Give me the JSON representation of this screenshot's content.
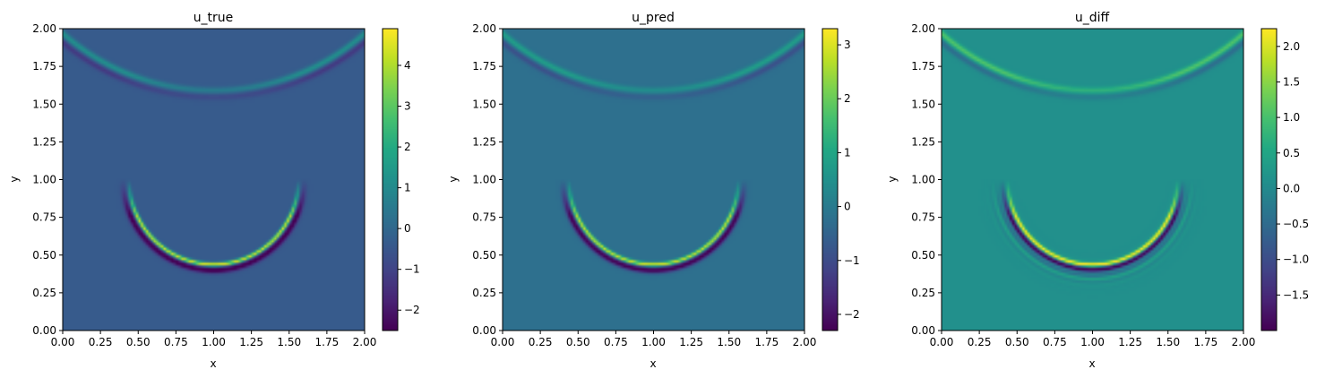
{
  "chart_data": [
    {
      "type": "heatmap",
      "title": "u_true",
      "xlabel": "x",
      "ylabel": "y",
      "xlim": [
        0,
        2
      ],
      "ylim": [
        0,
        2
      ],
      "xticks": [
        "0.00",
        "0.25",
        "0.50",
        "0.75",
        "1.00",
        "1.25",
        "1.50",
        "1.75",
        "2.00"
      ],
      "yticks": [
        "0.00",
        "0.25",
        "0.50",
        "0.75",
        "1.00",
        "1.25",
        "1.50",
        "1.75",
        "2.00"
      ],
      "colormap": "viridis",
      "colorbar": {
        "min": -2.5,
        "max": 4.9,
        "ticks": [
          -2,
          -1,
          0,
          1,
          2,
          3,
          4
        ],
        "labels": [
          "−2",
          "−1",
          "0",
          "1",
          "2",
          "3",
          "4"
        ]
      },
      "field": {
        "background": -0.4,
        "lower_arc": {
          "cx": 1.0,
          "cy": 1.0,
          "r": 0.57,
          "peak": 4.9,
          "trough": -2.4,
          "ringing": 0.0
        },
        "upper_arc": {
          "cx": 1.0,
          "cy": 3.1,
          "r": 1.52,
          "peak": 1.6,
          "trough": -0.9
        }
      }
    },
    {
      "type": "heatmap",
      "title": "u_pred",
      "xlabel": "x",
      "ylabel": "y",
      "xlim": [
        0,
        2
      ],
      "ylim": [
        0,
        2
      ],
      "xticks": [
        "0.00",
        "0.25",
        "0.50",
        "0.75",
        "1.00",
        "1.25",
        "1.50",
        "1.75",
        "2.00"
      ],
      "yticks": [
        "0.00",
        "0.25",
        "0.50",
        "0.75",
        "1.00",
        "1.25",
        "1.50",
        "1.75",
        "2.00"
      ],
      "colormap": "viridis",
      "colorbar": {
        "min": -2.3,
        "max": 3.3,
        "ticks": [
          -2,
          -1,
          0,
          1,
          2,
          3
        ],
        "labels": [
          "−2",
          "−1",
          "0",
          "1",
          "2",
          "3"
        ]
      },
      "field": {
        "background": -0.25,
        "lower_arc": {
          "cx": 1.0,
          "cy": 1.0,
          "r": 0.57,
          "peak": 3.2,
          "trough": -2.2,
          "ringing": 0.0
        },
        "upper_arc": {
          "cx": 1.0,
          "cy": 3.1,
          "r": 1.52,
          "peak": 1.1,
          "trough": -0.7
        }
      }
    },
    {
      "type": "heatmap",
      "title": "u_diff",
      "xlabel": "x",
      "ylabel": "y",
      "xlim": [
        0,
        2
      ],
      "ylim": [
        0,
        2
      ],
      "xticks": [
        "0.00",
        "0.25",
        "0.50",
        "0.75",
        "1.00",
        "1.25",
        "1.50",
        "1.75",
        "2.00"
      ],
      "yticks": [
        "0.00",
        "0.25",
        "0.50",
        "0.75",
        "1.00",
        "1.25",
        "1.50",
        "1.75",
        "2.00"
      ],
      "colormap": "viridis",
      "colorbar": {
        "min": -2.0,
        "max": 2.25,
        "ticks": [
          -1.5,
          -1.0,
          -0.5,
          0.0,
          0.5,
          1.0,
          1.5,
          2.0
        ],
        "labels": [
          "−1.5",
          "−1.0",
          "−0.5",
          "0.0",
          "0.5",
          "1.0",
          "1.5",
          "2.0"
        ]
      },
      "field": {
        "background": 0.1,
        "lower_arc": {
          "cx": 1.0,
          "cy": 1.0,
          "r": 0.57,
          "peak": 2.2,
          "trough": -1.9,
          "ringing": 0.5
        },
        "upper_arc": {
          "cx": 1.0,
          "cy": 3.1,
          "r": 1.52,
          "peak": 1.0,
          "trough": -0.6
        }
      }
    }
  ]
}
